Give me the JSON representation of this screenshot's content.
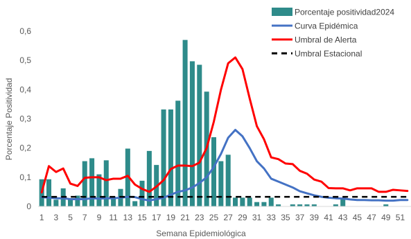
{
  "chart_data": {
    "type": "bar",
    "title": "",
    "xlabel": "Semana Epidemiológica",
    "ylabel": "Porcentaje Positividad",
    "ylim": [
      0,
      0.6
    ],
    "yticks": [
      "0",
      "0,1",
      "0,2",
      "0,3",
      "0,4",
      "0,5",
      "0,6"
    ],
    "ytick_values": [
      0,
      0.1,
      0.2,
      0.3,
      0.4,
      0.5,
      0.6
    ],
    "xtick_labels": [
      "1",
      "3",
      "5",
      "7",
      "9",
      "11",
      "13",
      "15",
      "17",
      "19",
      "21",
      "23",
      "25",
      "27",
      "29",
      "31",
      "33",
      "35",
      "37",
      "39",
      "41",
      "43",
      "45",
      "47",
      "49",
      "51"
    ],
    "grid": false,
    "legend_position": "top-right",
    "weeks": [
      1,
      2,
      3,
      4,
      5,
      6,
      7,
      8,
      9,
      10,
      11,
      12,
      13,
      14,
      15,
      16,
      17,
      18,
      19,
      20,
      21,
      22,
      23,
      24,
      25,
      26,
      27,
      28,
      29,
      30,
      31,
      32,
      33,
      34,
      35,
      36,
      37,
      38,
      39,
      40,
      41,
      42,
      43,
      44,
      45,
      46,
      47,
      48,
      49,
      50,
      51,
      52
    ],
    "series": [
      {
        "name": "Porcentaje positividad2024",
        "kind": "bar",
        "color": "#2e8b8a",
        "values": [
          0.093,
          0.093,
          0.023,
          0.062,
          0.023,
          0.037,
          0.155,
          0.165,
          0.11,
          0.158,
          0.033,
          0.06,
          0.198,
          0.018,
          0.088,
          0.19,
          0.142,
          0.332,
          0.332,
          0.362,
          0.57,
          0.497,
          0.485,
          0.393,
          0.237,
          0.155,
          0.177,
          0.03,
          0.03,
          0.03,
          0.015,
          0.015,
          0.03,
          0.007,
          0.0,
          0.007,
          0.007,
          0.007,
          0.007,
          0.0,
          0.0,
          0.007,
          0.03,
          0.0,
          0.0,
          0.0,
          0.0,
          0.0,
          0.007,
          0.0,
          0.0,
          0.0
        ]
      },
      {
        "name": "Curva Epidémica",
        "kind": "line",
        "color": "#4472c4",
        "values": [
          0.032,
          0.03,
          0.028,
          0.028,
          0.025,
          0.025,
          0.025,
          0.028,
          0.027,
          0.028,
          0.028,
          0.03,
          0.033,
          0.032,
          0.025,
          0.02,
          0.025,
          0.03,
          0.04,
          0.05,
          0.055,
          0.065,
          0.08,
          0.1,
          0.135,
          0.18,
          0.235,
          0.262,
          0.24,
          0.2,
          0.155,
          0.13,
          0.095,
          0.085,
          0.075,
          0.065,
          0.052,
          0.045,
          0.038,
          0.033,
          0.03,
          0.028,
          0.027,
          0.024,
          0.022,
          0.022,
          0.021,
          0.021,
          0.02,
          0.02,
          0.022,
          0.022
        ]
      },
      {
        "name": "Umbral de Alerta",
        "kind": "line",
        "color": "#ff0000",
        "values": [
          0.048,
          0.138,
          0.118,
          0.13,
          0.078,
          0.07,
          0.098,
          0.1,
          0.1,
          0.09,
          0.095,
          0.095,
          0.105,
          0.075,
          0.06,
          0.05,
          0.068,
          0.09,
          0.128,
          0.14,
          0.14,
          0.138,
          0.15,
          0.2,
          0.29,
          0.4,
          0.49,
          0.51,
          0.47,
          0.37,
          0.275,
          0.23,
          0.168,
          0.162,
          0.147,
          0.145,
          0.122,
          0.112,
          0.092,
          0.085,
          0.063,
          0.062,
          0.062,
          0.055,
          0.062,
          0.062,
          0.062,
          0.05,
          0.05,
          0.057,
          0.055,
          0.053
        ]
      },
      {
        "name": "Umbral Estacional",
        "kind": "dashed-line",
        "color": "#000000",
        "values": [
          0.033,
          0.033,
          0.033,
          0.033,
          0.033,
          0.033,
          0.033,
          0.033,
          0.033,
          0.033,
          0.033,
          0.033,
          0.033,
          0.033,
          0.033,
          0.033,
          0.033,
          0.033,
          0.033,
          0.033,
          0.033,
          0.033,
          0.033,
          0.033,
          0.033,
          0.033,
          0.033,
          0.033,
          0.033,
          0.033,
          0.033,
          0.033,
          0.033,
          0.033,
          0.033,
          0.033,
          0.033,
          0.033,
          0.033,
          0.033,
          0.033,
          0.033,
          0.033,
          0.033,
          0.033,
          0.033,
          0.033,
          0.033,
          0.033,
          0.033,
          0.033,
          0.033
        ]
      }
    ]
  }
}
